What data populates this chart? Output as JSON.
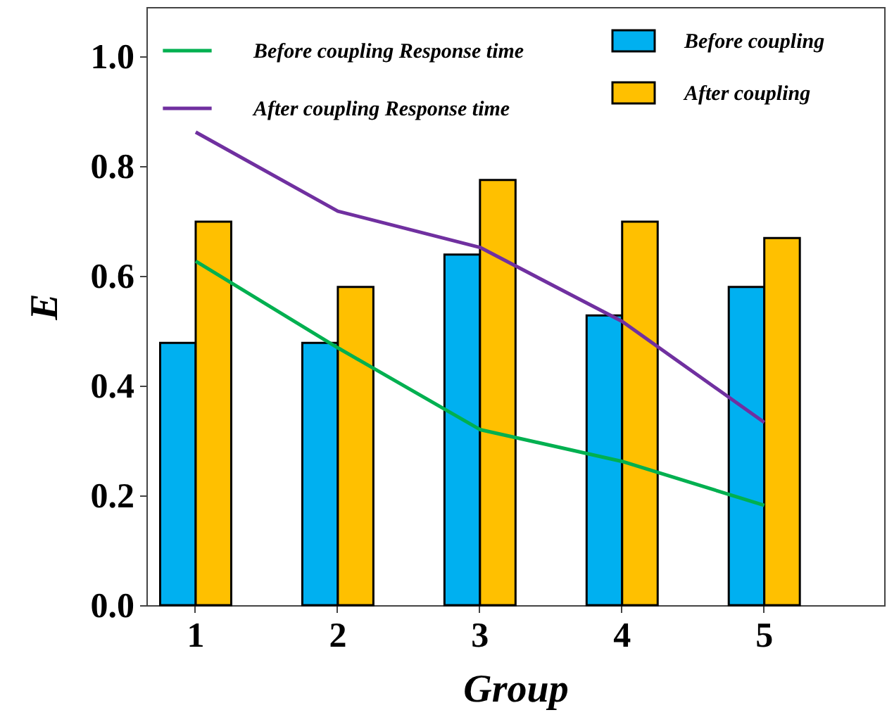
{
  "chart_data": {
    "type": "bar",
    "xlabel": "Group",
    "ylabel": "E",
    "categories": [
      "1",
      "2",
      "3",
      "4",
      "5"
    ],
    "series": [
      {
        "name": "Before coupling",
        "color": "#00b0f0",
        "values": [
          0.478,
          0.478,
          0.639,
          0.528,
          0.58
        ]
      },
      {
        "name": "After coupling",
        "color": "#ffc000",
        "values": [
          0.699,
          0.58,
          0.775,
          0.699,
          0.669
        ]
      },
      {
        "name": "Before coupling Response time",
        "type": "line",
        "color": "#00b050",
        "values": [
          0.627,
          0.469,
          0.32,
          0.262,
          0.182
        ]
      },
      {
        "name": "After coupling Response time",
        "type": "line",
        "color": "#7030a0",
        "values": [
          0.862,
          0.718,
          0.652,
          0.517,
          0.333
        ]
      }
    ],
    "ylim": [
      0,
      1.09
    ],
    "yticks": [
      {
        "value": 0,
        "label": "0.0"
      },
      0.2,
      0.4,
      0.6,
      0.8,
      {
        "value": 1,
        "label": "1.0"
      }
    ],
    "grid": false,
    "legend": "top",
    "marker": "none",
    "line_style": "solid"
  }
}
